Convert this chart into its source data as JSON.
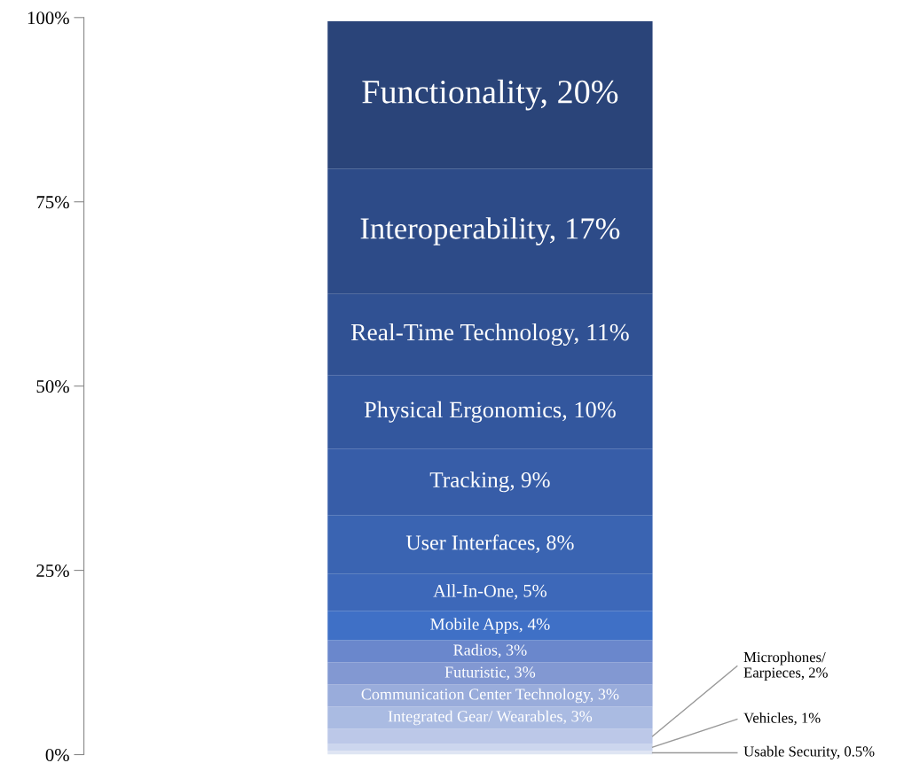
{
  "chart_data": {
    "type": "bar",
    "stacked": true,
    "categories": [
      null
    ],
    "ylim": [
      0,
      100
    ],
    "yticks": [
      {
        "value": 0,
        "label": "0%"
      },
      {
        "value": 25,
        "label": "25%"
      },
      {
        "value": 50,
        "label": "50%"
      },
      {
        "value": 75,
        "label": "75%"
      },
      {
        "value": 100,
        "label": "100%"
      }
    ],
    "series": [
      {
        "color": "#dfe5f3",
        "values": [
          0.5
        ],
        "value_labels": [
          "Usable Security, 0.5%"
        ]
      },
      {
        "color": "#ccd6ee",
        "values": [
          1
        ],
        "value_labels": [
          "Vehicles, 1%"
        ]
      },
      {
        "color": "#bcc8e8",
        "values": [
          2
        ],
        "value_labels": [
          "Microphones/\nEarpieces, 2%"
        ]
      },
      {
        "color": "#aabbe2",
        "values": [
          3
        ],
        "value_labels": [
          "Integrated Gear/ Wearables, 3%"
        ]
      },
      {
        "color": "#99acdb",
        "values": [
          3
        ],
        "value_labels": [
          "Communication Center Technology, 3%"
        ]
      },
      {
        "color": "#8298d2",
        "values": [
          3
        ],
        "value_labels": [
          "Futuristic, 3%"
        ]
      },
      {
        "color": "#6a87cc",
        "values": [
          3
        ],
        "value_labels": [
          "Radios, 3%"
        ]
      },
      {
        "color": "#3f70c6",
        "values": [
          4
        ],
        "value_labels": [
          "Mobile Apps, 4%"
        ]
      },
      {
        "color": "#3d68b9",
        "values": [
          5
        ],
        "value_labels": [
          "All-In-One, 5%"
        ]
      },
      {
        "color": "#3a64b2",
        "values": [
          8
        ],
        "value_labels": [
          "User Interfaces, 8%"
        ]
      },
      {
        "color": "#375da8",
        "values": [
          9
        ],
        "value_labels": [
          "Tracking, 9%"
        ]
      },
      {
        "color": "#33579e",
        "values": [
          10
        ],
        "value_labels": [
          "Physical Ergonomics, 10%"
        ]
      },
      {
        "color": "#305193",
        "values": [
          11
        ],
        "value_labels": [
          "Real-Time Technology, 11%"
        ]
      },
      {
        "color": "#2d4b88",
        "values": [
          17
        ],
        "value_labels": [
          "Interoperability, 17%"
        ]
      },
      {
        "color": "#2a4479",
        "values": [
          20
        ],
        "value_labels": [
          "Functionality, 20%"
        ]
      }
    ]
  }
}
